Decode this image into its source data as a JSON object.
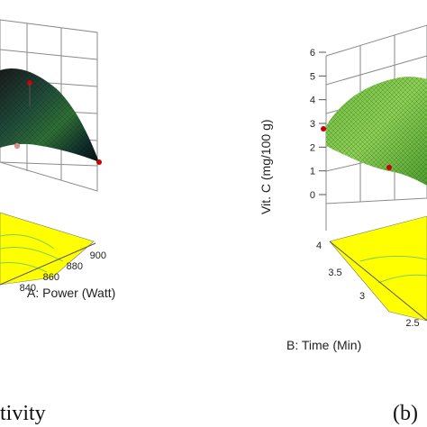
{
  "chart_data": [
    {
      "type": "surface3d",
      "panel_caption": "tivity",
      "x_axis": {
        "label": "A: Power (Watt)",
        "ticks": [
          "840",
          "860",
          "880",
          "900"
        ]
      },
      "y_axis": {
        "ticks": []
      },
      "z_axis": {
        "ticks": []
      },
      "surface_color": "dark-green-to-black gradient",
      "floor_color": "#ffff00",
      "design_points": [
        {
          "label": "top",
          "color": "#cc0000"
        },
        {
          "label": "mid",
          "color": "#cc0000"
        },
        {
          "label": "right",
          "color": "#cc0000"
        }
      ]
    },
    {
      "type": "surface3d",
      "panel_caption": "(b)",
      "x_axis": {
        "label": "B: Time (Min)",
        "ticks": [
          "4",
          "3.5",
          "3",
          "2.5"
        ]
      },
      "z_axis": {
        "label": "Vit. C (mg/100 g)",
        "ticks": [
          "0",
          "1",
          "2",
          "3",
          "4",
          "5",
          "6"
        ],
        "range": [
          0,
          6
        ]
      },
      "surface_color": "light-green gradient",
      "floor_color": "#ffff00",
      "design_points": [
        {
          "label": "left",
          "color": "#cc0000"
        },
        {
          "label": "front",
          "color": "#cc0000"
        }
      ]
    }
  ]
}
